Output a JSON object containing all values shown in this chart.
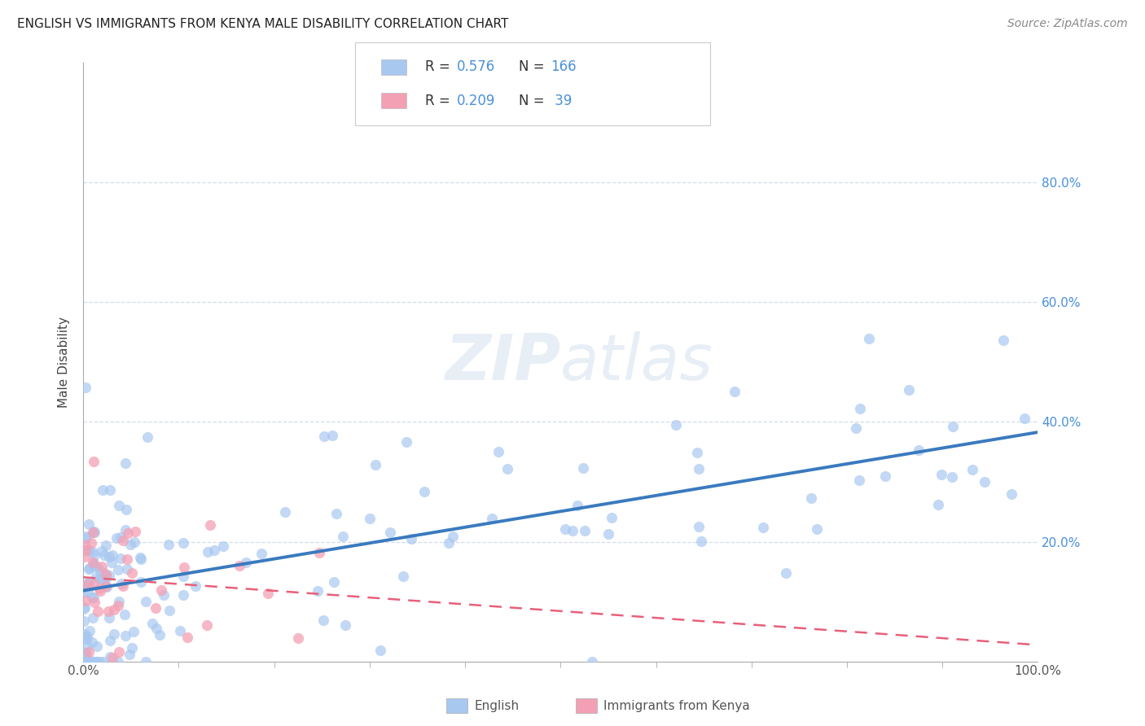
{
  "title": "ENGLISH VS IMMIGRANTS FROM KENYA MALE DISABILITY CORRELATION CHART",
  "source": "Source: ZipAtlas.com",
  "ylabel": "Male Disability",
  "legend_english_R": "0.576",
  "legend_english_N": "166",
  "legend_kenya_R": "0.209",
  "legend_kenya_N": "39",
  "english_color": "#a8c8f0",
  "kenya_color": "#f4a0b4",
  "english_line_color": "#3a7abf",
  "kenya_line_color": "#e8607a",
  "watermark": "ZIPatlas",
  "background_color": "#ffffff",
  "y_tick_vals": [
    20,
    40,
    60,
    80
  ],
  "x_tick_minor": [
    10,
    20,
    30,
    40,
    50,
    60,
    70,
    80,
    90
  ],
  "xlim": [
    0,
    100
  ],
  "ylim": [
    0,
    100
  ],
  "english_seed": 42,
  "kenya_seed": 77
}
